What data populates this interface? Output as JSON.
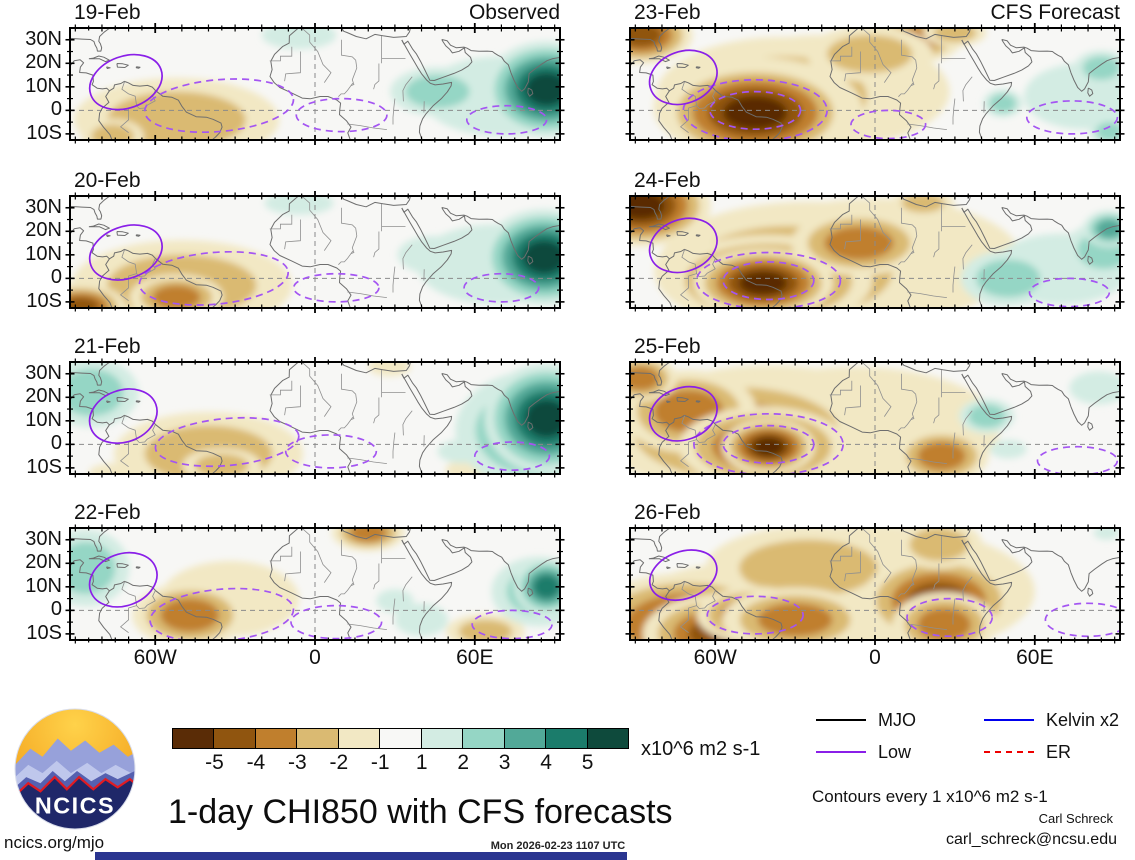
{
  "page": {
    "title": "1-day CHI850 with CFS forecasts",
    "timestamp": "Mon 2026-02-23 1107 UTC",
    "site": "ncics.org/mjo",
    "credit_name": "Carl Schreck",
    "credit_email": "carl_schreck@ncsu.edu",
    "contours_note": "Contours every 1 x10^6 m2 s-1",
    "logo_text": "NCICS",
    "footer_bar_color": "#2a3590"
  },
  "legend": {
    "items": [
      {
        "label": "MJO",
        "color": "#000000",
        "style": "solid"
      },
      {
        "label": "Low",
        "color": "#8a1fe8",
        "style": "solid"
      },
      {
        "label": "Kelvin x2",
        "color": "#0000ee",
        "style": "solid"
      },
      {
        "label": "ER",
        "color": "#ee0000",
        "style": "dashed"
      }
    ]
  },
  "colorbar": {
    "units_label": "x10^6 m2 s-1",
    "tick_labels": [
      "-5",
      "-4",
      "-3",
      "-2",
      "-1",
      "1",
      "2",
      "3",
      "4",
      "5"
    ],
    "colors": [
      "#5a2c06",
      "#90550f",
      "#c07f2d",
      "#daba72",
      "#f2e8c4",
      "#f8f8f6",
      "#d3ece3",
      "#95d6c5",
      "#52a998",
      "#1b7c6b",
      "#0e4a3c"
    ],
    "neutral_color": "#f7f7f5"
  },
  "chart_data": {
    "type": "heatmap",
    "variable": "CHI850 (850 hPa velocity potential) anomaly",
    "units": "x10^6 m2 s-1",
    "title": "1-day CHI850 with CFS forecasts",
    "columns": [
      "Observed",
      "CFS Forecast"
    ],
    "map_extent": {
      "lon_min": -92,
      "lon_max": 92,
      "lat_min": -12.6,
      "lat_max": 35
    },
    "x_axis": {
      "tick_lons": [
        -60,
        0,
        60
      ],
      "tick_labels": [
        "60W",
        "0",
        "60E"
      ]
    },
    "y_axis": {
      "tick_lats": [
        30,
        20,
        10,
        0,
        -10
      ],
      "tick_labels": [
        "30N",
        "20N",
        "10N",
        "0",
        "10S"
      ]
    },
    "shade_levels": [
      -5,
      -4,
      -3,
      -2,
      -1,
      1,
      2,
      3,
      4,
      5
    ],
    "contour_colors": {
      "low_solid": "#8a1fe8",
      "low_dashed": "#a455f2",
      "grid_dash": "#8a8a8a"
    },
    "panels": [
      {
        "date": "19-Feb",
        "corner_label": "Observed",
        "row": 0,
        "col": 0,
        "anomalies": [
          [
            -52,
            -4,
            26,
            12,
            -2
          ],
          [
            -76,
            -11,
            8,
            5,
            -2
          ],
          [
            70,
            6,
            30,
            17,
            1
          ],
          [
            -6,
            32,
            14,
            6,
            1
          ],
          [
            46,
            8,
            12,
            7,
            2
          ],
          [
            87,
            9,
            8,
            7,
            5
          ]
        ],
        "low_solid": [
          [
            -71,
            12,
            14,
            11,
            -20
          ]
        ],
        "low_dashed": [
          [
            -36,
            2,
            28,
            11,
            -5
          ],
          [
            72,
            -4,
            15,
            6,
            0
          ],
          [
            10,
            -2,
            17,
            7,
            0
          ]
        ]
      },
      {
        "date": "23-Feb",
        "corner_label": "CFS Forecast",
        "row": 0,
        "col": 1,
        "anomalies": [
          [
            -20,
            8,
            48,
            24,
            -1
          ],
          [
            -35,
            6,
            32,
            17,
            -2
          ],
          [
            -44,
            1,
            20,
            11,
            -3
          ],
          [
            -45,
            -1,
            12,
            7,
            -5
          ],
          [
            -88,
            32,
            8,
            5,
            -4
          ],
          [
            15,
            30,
            9,
            5,
            -3
          ],
          [
            -2,
            24,
            16,
            8,
            -2
          ],
          [
            30,
            33,
            8,
            4,
            -2
          ],
          [
            78,
            6,
            22,
            14,
            1
          ],
          [
            85,
            18,
            7,
            5,
            2
          ],
          [
            48,
            3,
            5,
            4,
            2
          ],
          [
            88,
            -9,
            5,
            4,
            2
          ]
        ],
        "low_solid": [
          [
            -72,
            14,
            13,
            11,
            -20
          ]
        ],
        "low_dashed": [
          [
            -45,
            0,
            17,
            8,
            0
          ],
          [
            -45,
            0,
            27,
            13,
            0
          ],
          [
            74,
            -3,
            17,
            7,
            0
          ],
          [
            5,
            -6,
            14,
            6,
            0
          ]
        ]
      },
      {
        "date": "20-Feb",
        "corner_label": "",
        "row": 1,
        "col": 0,
        "anomalies": [
          [
            -50,
            -3,
            28,
            13,
            -2
          ],
          [
            -52,
            -8,
            9,
            5,
            -3
          ],
          [
            -88,
            -12,
            7,
            4,
            -4
          ],
          [
            68,
            6,
            30,
            17,
            1
          ],
          [
            -6,
            32,
            13,
            5,
            1
          ],
          [
            44,
            10,
            13,
            8,
            1
          ],
          [
            86,
            9,
            8,
            7,
            5
          ]
        ],
        "low_solid": [
          [
            -71,
            11,
            14,
            11,
            -20
          ]
        ],
        "low_dashed": [
          [
            -38,
            0,
            28,
            11,
            -5
          ],
          [
            70,
            -4,
            14,
            6,
            0
          ],
          [
            8,
            -4,
            16,
            6,
            0
          ]
        ]
      },
      {
        "date": "24-Feb",
        "corner_label": "",
        "row": 1,
        "col": 1,
        "anomalies": [
          [
            0,
            8,
            55,
            26,
            -1
          ],
          [
            -25,
            6,
            38,
            18,
            -2
          ],
          [
            -32,
            3,
            26,
            13,
            -3
          ],
          [
            -40,
            -1,
            16,
            8,
            -4
          ],
          [
            -42,
            -2,
            9,
            5,
            -5
          ],
          [
            -88,
            31,
            9,
            6,
            -5
          ],
          [
            -6,
            15,
            13,
            7,
            -3
          ],
          [
            18,
            32,
            8,
            4,
            -2
          ],
          [
            70,
            4,
            26,
            15,
            1
          ],
          [
            50,
            0,
            12,
            8,
            2
          ],
          [
            86,
            12,
            10,
            8,
            2
          ],
          [
            88,
            21,
            5,
            4,
            3
          ]
        ],
        "low_solid": [
          [
            -72,
            14,
            13,
            11,
            -20
          ]
        ],
        "low_dashed": [
          [
            -40,
            -1,
            17,
            8,
            0
          ],
          [
            -40,
            -1,
            27,
            12,
            0
          ],
          [
            73,
            -6,
            15,
            6,
            0
          ]
        ]
      },
      {
        "date": "21-Feb",
        "corner_label": "",
        "row": 2,
        "col": 0,
        "anomalies": [
          [
            -40,
            -4,
            24,
            12,
            -2
          ],
          [
            -35,
            -9,
            10,
            5,
            -2
          ],
          [
            -75,
            -12,
            10,
            4,
            -1
          ],
          [
            28,
            33,
            8,
            4,
            -1
          ],
          [
            60,
            -11,
            11,
            5,
            -1
          ],
          [
            -84,
            22,
            12,
            10,
            2
          ],
          [
            55,
            -3,
            9,
            5,
            1
          ],
          [
            84,
            6,
            16,
            13,
            3
          ],
          [
            87,
            11,
            8,
            8,
            5
          ]
        ],
        "low_solid": [
          [
            -72,
            12,
            13,
            11,
            -20
          ]
        ],
        "low_dashed": [
          [
            -33,
            1,
            27,
            10,
            -5
          ],
          [
            74,
            -5,
            14,
            6,
            0
          ],
          [
            6,
            -3,
            17,
            7,
            0
          ]
        ]
      },
      {
        "date": "25-Feb",
        "corner_label": "",
        "row": 2,
        "col": 1,
        "anomalies": [
          [
            -8,
            7,
            55,
            26,
            -1
          ],
          [
            -40,
            7,
            36,
            18,
            -2
          ],
          [
            -52,
            5,
            26,
            13,
            -3
          ],
          [
            -70,
            14,
            13,
            9,
            -3
          ],
          [
            -42,
            -1,
            13,
            7,
            -4
          ],
          [
            -40,
            -1,
            6,
            4,
            -5
          ],
          [
            -88,
            28,
            7,
            5,
            -3
          ],
          [
            25,
            -5,
            9,
            6,
            -3
          ],
          [
            42,
            12,
            7,
            5,
            2
          ],
          [
            50,
            -2,
            7,
            4,
            1
          ],
          [
            84,
            24,
            11,
            7,
            1
          ]
        ],
        "low_solid": [
          [
            -72,
            13,
            13,
            11,
            -20
          ]
        ],
        "low_dashed": [
          [
            -40,
            0,
            17,
            8,
            0
          ],
          [
            -40,
            0,
            28,
            13,
            0
          ],
          [
            76,
            -7,
            15,
            6,
            0
          ]
        ]
      },
      {
        "date": "22-Feb",
        "corner_label": "",
        "row": 3,
        "col": 0,
        "anomalies": [
          [
            -32,
            5,
            26,
            16,
            -1
          ],
          [
            -47,
            -2,
            11,
            7,
            -3
          ],
          [
            20,
            33,
            7,
            4,
            -3
          ],
          [
            64,
            -9,
            10,
            5,
            -2
          ],
          [
            -86,
            18,
            11,
            11,
            2
          ],
          [
            84,
            8,
            12,
            10,
            2
          ],
          [
            87,
            10,
            5,
            5,
            4
          ],
          [
            40,
            -4,
            10,
            7,
            1
          ],
          [
            30,
            4,
            7,
            5,
            1
          ]
        ],
        "low_solid": [
          [
            -72,
            13,
            13,
            11,
            -20
          ]
        ],
        "low_dashed": [
          [
            -35,
            -2,
            27,
            11,
            -5
          ],
          [
            8,
            -5,
            17,
            7,
            0
          ],
          [
            74,
            -6,
            15,
            6,
            0
          ]
        ]
      },
      {
        "date": "26-Feb",
        "corner_label": "",
        "row": 3,
        "col": 1,
        "anomalies": [
          [
            0,
            8,
            60,
            28,
            -1
          ],
          [
            -50,
            -2,
            30,
            15,
            -2
          ],
          [
            -25,
            18,
            26,
            12,
            -2
          ],
          [
            -70,
            -6,
            16,
            9,
            -4
          ],
          [
            -58,
            -10,
            12,
            7,
            -4
          ],
          [
            -45,
            -2,
            9,
            5,
            -4
          ],
          [
            -30,
            -4,
            14,
            7,
            -3
          ],
          [
            24,
            4,
            12,
            8,
            -4
          ],
          [
            26,
            -6,
            10,
            7,
            -3
          ],
          [
            24,
            28,
            11,
            7,
            -2
          ],
          [
            87,
            33,
            5,
            3,
            1
          ]
        ],
        "low_solid": [
          [
            -72,
            15,
            13,
            10,
            -20
          ]
        ],
        "low_dashed": [
          [
            -45,
            -2,
            18,
            8,
            0
          ],
          [
            28,
            -3,
            16,
            8,
            0
          ],
          [
            80,
            -4,
            16,
            7,
            0
          ]
        ]
      }
    ]
  }
}
